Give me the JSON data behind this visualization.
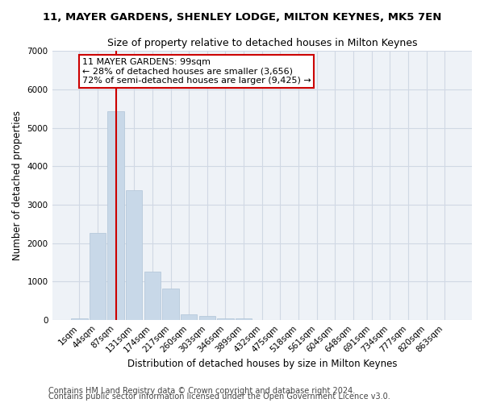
{
  "title": "11, MAYER GARDENS, SHENLEY LODGE, MILTON KEYNES, MK5 7EN",
  "subtitle": "Size of property relative to detached houses in Milton Keynes",
  "xlabel": "Distribution of detached houses by size in Milton Keynes",
  "ylabel": "Number of detached properties",
  "footer1": "Contains HM Land Registry data © Crown copyright and database right 2024.",
  "footer2": "Contains public sector information licensed under the Open Government Licence v3.0.",
  "bar_color": "#c8d8e8",
  "bar_edgecolor": "#b0c4d8",
  "grid_color": "#d0d8e4",
  "background_color": "#eef2f7",
  "property_line_color": "#cc0000",
  "annotation_box_edgecolor": "#cc0000",
  "categories": [
    "1sqm",
    "44sqm",
    "87sqm",
    "131sqm",
    "174sqm",
    "217sqm",
    "260sqm",
    "303sqm",
    "346sqm",
    "389sqm",
    "432sqm",
    "475sqm",
    "518sqm",
    "561sqm",
    "604sqm",
    "648sqm",
    "691sqm",
    "734sqm",
    "777sqm",
    "820sqm",
    "863sqm"
  ],
  "values": [
    50,
    2270,
    5430,
    3380,
    1270,
    820,
    160,
    100,
    50,
    50,
    0,
    0,
    0,
    0,
    0,
    0,
    0,
    0,
    0,
    0,
    0
  ],
  "ylim": [
    0,
    7000
  ],
  "yticks": [
    0,
    1000,
    2000,
    3000,
    4000,
    5000,
    6000,
    7000
  ],
  "property_bar_index": 2,
  "property_label": "11 MAYER GARDENS: 99sqm",
  "annotation_line1": "← 28% of detached houses are smaller (3,656)",
  "annotation_line2": "72% of semi-detached houses are larger (9,425) →",
  "title_fontsize": 9.5,
  "subtitle_fontsize": 9,
  "axis_label_fontsize": 8.5,
  "tick_fontsize": 7.5,
  "annotation_fontsize": 8,
  "footer_fontsize": 7
}
